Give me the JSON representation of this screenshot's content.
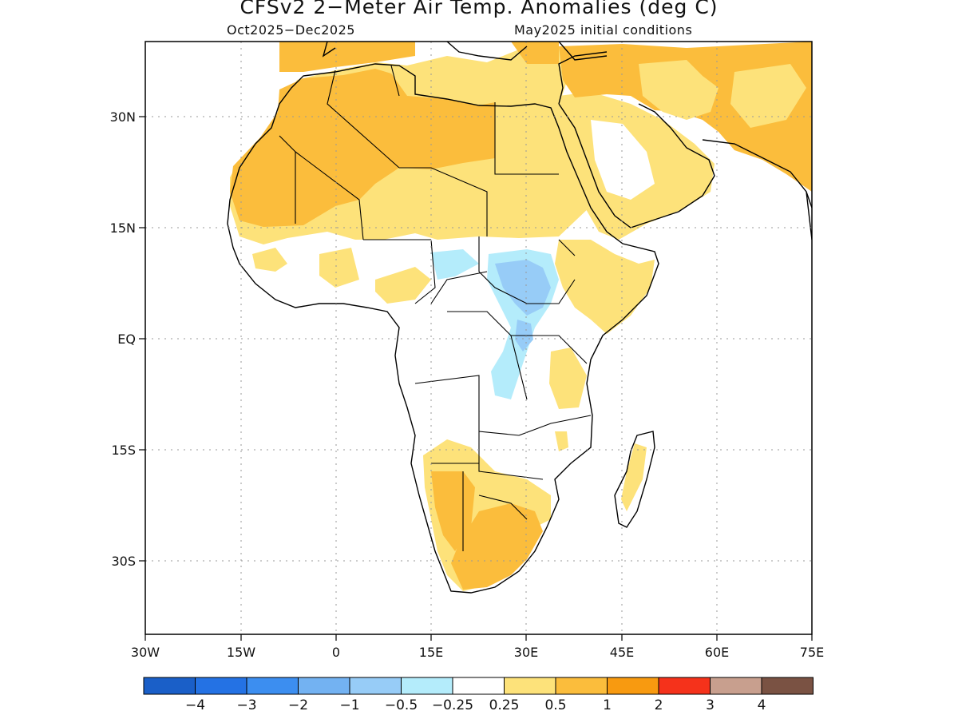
{
  "title": "CFSv2 2−Meter Air Temp. Anomalies (deg C)",
  "subtitle_left": "Oct2025−Dec2025",
  "subtitle_right": "May2025 initial conditions",
  "map": {
    "region": "Africa",
    "lat_ticks": [
      "30N",
      "15N",
      "EQ",
      "15S",
      "30S"
    ],
    "lon_ticks": [
      "30W",
      "15W",
      "0",
      "15E",
      "30E",
      "45E",
      "60E",
      "75E"
    ],
    "grid": "dotted",
    "anomaly_regions": [
      {
        "area": "Sahara / North Africa",
        "category": "0.5 to 1"
      },
      {
        "area": "Arabian Peninsula",
        "category": "0.25 to 0.5"
      },
      {
        "area": "Iran / Middle East",
        "category": "0.5 to 1"
      },
      {
        "area": "South Sudan / Uganda",
        "category": "-1 to -0.5"
      },
      {
        "area": "Central Sudan / Chad",
        "category": "-0.5 to -0.25"
      },
      {
        "area": "Ethiopia / Somalia",
        "category": "0.25 to 0.5"
      },
      {
        "area": "Southern Africa",
        "category": "0.5 to 1"
      },
      {
        "area": "Madagascar",
        "category": "0.25 to 0.5"
      }
    ]
  },
  "colorbar": {
    "colors": [
      "#1a5fc8",
      "#2472e4",
      "#3c8ef0",
      "#73b2f2",
      "#97ccf7",
      "#b4ecfb",
      "#ffffff",
      "#fde27a",
      "#fbbd3c",
      "#f89a10",
      "#f5321b",
      "#c89f8e",
      "#7a5243"
    ],
    "labels": [
      "−4",
      "−3",
      "−2",
      "−1",
      "−0.5",
      "−0.25",
      "0.25",
      "0.5",
      "1",
      "2",
      "3",
      "4"
    ]
  }
}
